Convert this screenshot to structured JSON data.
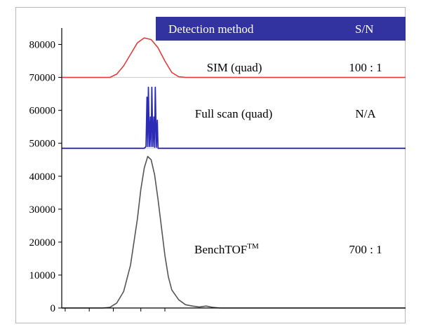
{
  "chart_data": {
    "type": "line",
    "title": "",
    "xlabel": "",
    "ylabel": "",
    "ylim": [
      0,
      85000
    ],
    "yticks": [
      0,
      10000,
      20000,
      30000,
      40000,
      50000,
      60000,
      70000,
      80000
    ],
    "ytick_labels": [
      "0",
      "10000",
      "20000",
      "30000",
      "40000",
      "50000",
      "60000",
      "70000",
      "80000"
    ],
    "header": {
      "method": "Detection method",
      "sn": "S/N"
    },
    "colors": {
      "header_bg": "#3232a0",
      "sim": "#e13c3c",
      "full": "#2b2bb8",
      "tof": "#555555",
      "separator": "#c8c8c8"
    },
    "series": [
      {
        "method": "SIM (quad)",
        "sn": "100 : 1",
        "color": "#e13c3c",
        "baseline": 70000,
        "x": [
          0.0,
          0.14,
          0.16,
          0.18,
          0.2,
          0.22,
          0.24,
          0.26,
          0.28,
          0.3,
          0.32,
          0.34,
          0.36,
          0.38,
          0.4,
          1.0
        ],
        "y": [
          70000,
          70000,
          71000,
          73500,
          77000,
          80500,
          82000,
          81500,
          79000,
          75000,
          71500,
          70200,
          70000,
          70000,
          70000,
          70000
        ]
      },
      {
        "method": "Full scan (quad)",
        "sn": "N/A",
        "color": "#2b2bb8",
        "baseline": 48500,
        "x": [
          0.0,
          0.24,
          0.245,
          0.248,
          0.25,
          0.252,
          0.255,
          0.258,
          0.26,
          0.262,
          0.265,
          0.268,
          0.27,
          0.272,
          0.275,
          0.278,
          0.28,
          0.282,
          0.285,
          1.0
        ],
        "y": [
          48500,
          48500,
          49000,
          64000,
          49000,
          67000,
          49000,
          58000,
          49000,
          67000,
          49000,
          58000,
          48800,
          67000,
          48800,
          57000,
          48500,
          48500,
          48500,
          48500
        ]
      },
      {
        "method": "BenchTOF",
        "method_sup": "TM",
        "sn": "700 : 1",
        "color": "#555555",
        "baseline": 0,
        "x": [
          0.0,
          0.12,
          0.14,
          0.16,
          0.18,
          0.2,
          0.22,
          0.23,
          0.24,
          0.25,
          0.26,
          0.27,
          0.28,
          0.29,
          0.3,
          0.31,
          0.32,
          0.34,
          0.36,
          0.38,
          0.4,
          0.42,
          0.44,
          0.46,
          1.0
        ],
        "y": [
          0,
          0,
          200,
          1500,
          5000,
          13000,
          27000,
          36000,
          42500,
          46000,
          45000,
          40500,
          33000,
          24500,
          16000,
          9500,
          5500,
          2500,
          1000,
          600,
          300,
          600,
          200,
          0,
          0
        ]
      }
    ]
  }
}
